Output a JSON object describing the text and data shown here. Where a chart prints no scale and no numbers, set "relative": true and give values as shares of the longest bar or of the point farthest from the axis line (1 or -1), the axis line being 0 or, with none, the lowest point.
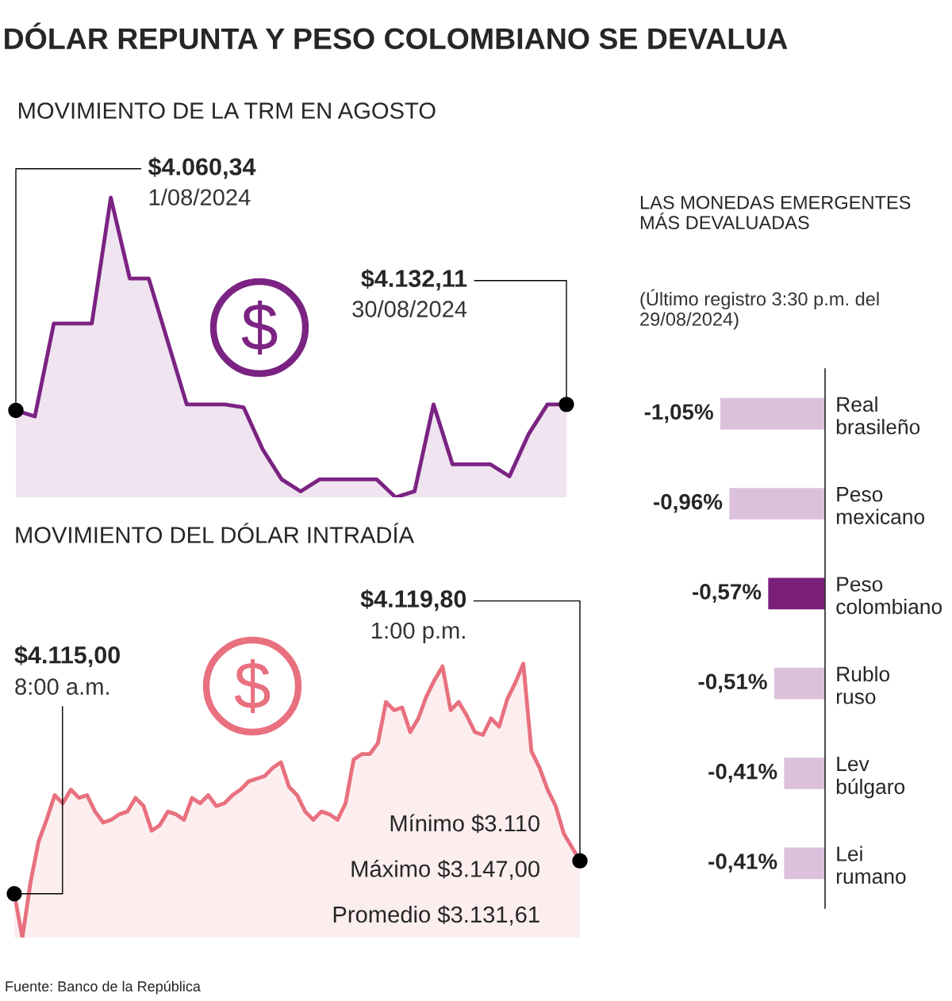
{
  "chart_data": [
    {
      "type": "area",
      "title": "DÓLAR REPUNTA Y PESO COLOMBIANO SE DEVALUA",
      "subtitle": "MOVIMIENTO DE LA TRM EN AGOSTO",
      "relative": true,
      "tick_labels": false,
      "grid": false,
      "legend": false,
      "marker": "none",
      "categories": [
        null,
        null,
        null,
        null,
        null,
        null,
        null,
        null,
        null,
        null,
        null,
        null,
        null,
        null,
        null,
        null,
        null,
        null,
        null,
        null,
        null,
        null,
        null,
        null,
        null,
        null,
        null,
        null,
        null,
        null
      ],
      "series": [
        {
          "color": "#7b2382",
          "values": [
            0.29,
            0.27,
            0.58,
            0.58,
            0.58,
            1,
            0.73,
            0.73,
            0.52,
            0.31,
            0.31,
            0.31,
            0.3,
            0.16,
            0.06,
            0.02,
            0.06,
            0.06,
            0.06,
            0.06,
            0,
            0.02,
            0.31,
            0.11,
            0.11,
            0.11,
            0.07,
            0.21,
            0.31,
            0.31
          ]
        }
      ],
      "annotations": [
        "$4.060,34",
        "1/08/2024",
        "$4.132,11",
        "30/08/2024"
      ]
    },
    {
      "type": "area",
      "title": "MOVIMIENTO DEL DÓLAR INTRADÍA",
      "relative": true,
      "tick_labels": false,
      "grid": false,
      "legend": false,
      "marker": "none",
      "categories": [
        null,
        null,
        null,
        null,
        null,
        null,
        null,
        null,
        null,
        null,
        null,
        null,
        null,
        null,
        null,
        null,
        null,
        null,
        null,
        null,
        null,
        null,
        null,
        null,
        null,
        null,
        null,
        null,
        null,
        null,
        null,
        null,
        null,
        null,
        null,
        null,
        null,
        null,
        null,
        null,
        null,
        null,
        null,
        null,
        null,
        null,
        null,
        null,
        null,
        null,
        null,
        null,
        null,
        null,
        null,
        null,
        null,
        null,
        null,
        null,
        null,
        null,
        null,
        null,
        null,
        null,
        null,
        null,
        null,
        null,
        null
      ],
      "series": [
        {
          "color": "#e8707f",
          "values": [
            0.16,
            0,
            0.2,
            0.35,
            0.43,
            0.52,
            0.49,
            0.54,
            0.51,
            0.52,
            0.46,
            0.42,
            0.43,
            0.45,
            0.46,
            0.51,
            0.48,
            0.39,
            0.41,
            0.46,
            0.45,
            0.43,
            0.51,
            0.49,
            0.52,
            0.48,
            0.49,
            0.52,
            0.54,
            0.57,
            0.58,
            0.59,
            0.62,
            0.64,
            0.55,
            0.52,
            0.46,
            0.43,
            0.46,
            0.45,
            0.43,
            0.49,
            0.65,
            0.67,
            0.67,
            0.71,
            0.86,
            0.83,
            0.84,
            0.75,
            0.8,
            0.88,
            0.94,
            0.99,
            0.83,
            0.86,
            0.81,
            0.75,
            0.74,
            0.8,
            0.77,
            0.87,
            0.93,
            1,
            0.68,
            0.62,
            0.54,
            0.48,
            0.38,
            0.33,
            0.28
          ]
        }
      ],
      "annotations": [
        "$4.115,00",
        "8:00 a.m.",
        "$4.119,80",
        "1:00 p.m.",
        "Mínimo $3.110",
        "Máximo $3.147,00",
        "Promedio $3.131,61"
      ]
    },
    {
      "type": "bar",
      "orientation": "horizontal",
      "title": "LAS MONEDAS EMERGENTES MÁS DEVALUADAS",
      "subtitle": "(Último registro 3:30 p.m. del 29/08/2024)",
      "tick_labels": "y",
      "grid": false,
      "legend": false,
      "categories": [
        "Real brasileño",
        "Peso mexicano",
        "Peso colombiano",
        "Rublo ruso",
        "Lev búlgaro",
        "Lei rumano"
      ],
      "values": [
        -1.05,
        -0.96,
        -0.57,
        -0.51,
        -0.41,
        -0.41
      ],
      "colors": [
        "#dcc1dd",
        "#dcc1dd",
        "#7b1f7a",
        "#dcc1dd",
        "#dcc1dd",
        "#dcc1dd"
      ],
      "value_labels": [
        "-1,05%",
        "-0,96%",
        "-0,57%",
        "-0,51%",
        "-0,41%",
        "-0,41%"
      ],
      "annotations": [
        "Fuente: Banco de la República"
      ]
    }
  ]
}
